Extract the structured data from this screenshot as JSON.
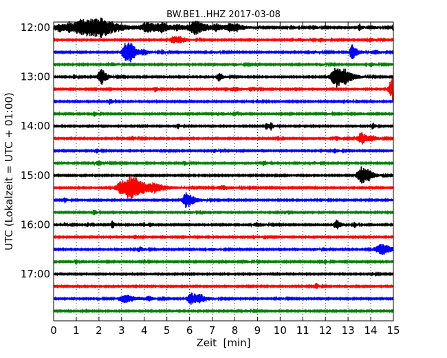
{
  "chart_data": {
    "type": "line",
    "title": "BW.BE1..HHZ 2017-03-08",
    "xlabel": "Zeit  [min]",
    "ylabel": "UTC (Lokalzeit = UTC + 01:00)",
    "xlim": [
      0,
      15
    ],
    "xticks": [
      "0",
      "1",
      "2",
      "3",
      "4",
      "5",
      "6",
      "7",
      "8",
      "9",
      "10",
      "11",
      "12",
      "13",
      "14",
      "15"
    ],
    "y_tick_labels": [
      "12:00",
      "13:00",
      "14:00",
      "15:00",
      "16:00",
      "17:00"
    ],
    "y_tick_rows": [
      0,
      4,
      8,
      12,
      16,
      20
    ],
    "grid": "vertical dotted",
    "colors": [
      "#000000",
      "#ff0000",
      "#0000ff",
      "#008000"
    ],
    "traces": [
      {
        "start": "12:00",
        "color": "#000000",
        "events": [
          [
            0.3,
            6,
            0.5
          ],
          [
            0.7,
            5,
            0.25
          ],
          [
            1.2,
            6,
            0.4
          ],
          [
            1.8,
            11,
            1.0
          ],
          [
            2.2,
            7,
            0.4
          ],
          [
            4.2,
            7,
            0.5
          ],
          [
            4.8,
            5,
            0.3
          ],
          [
            5.5,
            4,
            0.3
          ],
          [
            6.3,
            10,
            0.5
          ],
          [
            7.2,
            4,
            0.3
          ],
          [
            7.8,
            5,
            0.3
          ],
          [
            8.1,
            4,
            0.3
          ],
          [
            10.5,
            3,
            0.2
          ],
          [
            11.5,
            3,
            0.2
          ],
          [
            13.5,
            6,
            0.1
          ],
          [
            14.0,
            3,
            0.3
          ],
          [
            15.0,
            4,
            0.1
          ]
        ]
      },
      {
        "start": "12:15",
        "color": "#ff0000",
        "events": [
          [
            5.3,
            5,
            0.3
          ],
          [
            5.6,
            3,
            0.3
          ],
          [
            10.9,
            2,
            0.4
          ],
          [
            11.8,
            3,
            0.2
          ],
          [
            14.0,
            3,
            0.2
          ]
        ]
      },
      {
        "start": "12:30",
        "color": "#0000ff",
        "events": [
          [
            3.2,
            13,
            0.3
          ],
          [
            3.4,
            9,
            0.2
          ],
          [
            4.0,
            4,
            0.2
          ],
          [
            4.8,
            4,
            0.1
          ],
          [
            7.0,
            2,
            0.3
          ],
          [
            11.5,
            2,
            0.3
          ],
          [
            13.2,
            12,
            0.2
          ],
          [
            14.2,
            3,
            0.3
          ]
        ]
      },
      {
        "start": "12:45",
        "color": "#008000",
        "events": [
          [
            2.6,
            3,
            0.2
          ],
          [
            8.0,
            2,
            0.3
          ],
          [
            11.8,
            2,
            0.2
          ],
          [
            14.0,
            3,
            0.2
          ]
        ]
      },
      {
        "start": "13:00",
        "color": "#000000",
        "events": [
          [
            0.9,
            4,
            0.1
          ],
          [
            2.1,
            14,
            0.2
          ],
          [
            7.3,
            6,
            0.2
          ],
          [
            12.5,
            15,
            0.4
          ],
          [
            12.9,
            6,
            0.3
          ]
        ]
      },
      {
        "start": "13:15",
        "color": "#ff0000",
        "events": [
          [
            4.5,
            4,
            0.1
          ],
          [
            8.0,
            3,
            0.4
          ],
          [
            14.9,
            12,
            0.2
          ],
          [
            15.0,
            10,
            0.1
          ]
        ]
      },
      {
        "start": "13:30",
        "color": "#0000ff",
        "events": [
          [
            2.5,
            5,
            0.1
          ],
          [
            9.0,
            2,
            0.2
          ],
          [
            13.0,
            2,
            0.2
          ]
        ]
      },
      {
        "start": "13:45",
        "color": "#008000",
        "events": [
          [
            1.8,
            4,
            0.1
          ],
          [
            7.5,
            2,
            0.3
          ],
          [
            12.0,
            2,
            0.2
          ]
        ]
      },
      {
        "start": "14:00",
        "color": "#000000",
        "events": [
          [
            5.5,
            4,
            0.1
          ],
          [
            9.4,
            6,
            0.1
          ],
          [
            9.6,
            5,
            0.1
          ],
          [
            14.1,
            5,
            0.1
          ]
        ]
      },
      {
        "start": "14:15",
        "color": "#ff0000",
        "events": [
          [
            3.5,
            3,
            0.2
          ],
          [
            9.9,
            3,
            0.1
          ],
          [
            12.5,
            3,
            0.2
          ],
          [
            13.6,
            9,
            0.3
          ],
          [
            14.1,
            3,
            0.2
          ]
        ]
      },
      {
        "start": "14:30",
        "color": "#0000ff",
        "events": [
          [
            1.9,
            4,
            0.1
          ],
          [
            4.9,
            3,
            0.1
          ],
          [
            7.1,
            2,
            0.2
          ],
          [
            12.4,
            3,
            0.2
          ]
        ]
      },
      {
        "start": "14:45",
        "color": "#008000",
        "events": [
          [
            2.0,
            4,
            0.2
          ],
          [
            5.8,
            4,
            0.1
          ],
          [
            9.3,
            5,
            0.1
          ],
          [
            11.5,
            2,
            0.2
          ]
        ]
      },
      {
        "start": "15:00",
        "color": "#000000",
        "events": [
          [
            13.6,
            13,
            0.3
          ],
          [
            13.9,
            4,
            0.2
          ]
        ]
      },
      {
        "start": "15:15",
        "color": "#ff0000",
        "events": [
          [
            3.0,
            7,
            0.4
          ],
          [
            3.5,
            15,
            0.7
          ],
          [
            4.5,
            4,
            0.3
          ],
          [
            7.5,
            3,
            0.5
          ]
        ]
      },
      {
        "start": "15:30",
        "color": "#0000ff",
        "events": [
          [
            0.5,
            4,
            0.1
          ],
          [
            5.9,
            12,
            0.3
          ],
          [
            11.8,
            2,
            0.2
          ]
        ]
      },
      {
        "start": "15:45",
        "color": "#008000",
        "events": [
          [
            1.8,
            5,
            0.1
          ],
          [
            6.0,
            2,
            0.2
          ],
          [
            10.2,
            3,
            0.1
          ]
        ]
      },
      {
        "start": "16:00",
        "color": "#000000",
        "events": [
          [
            0.5,
            3,
            0.1
          ],
          [
            1.5,
            3,
            0.1
          ],
          [
            2.6,
            6,
            0.1
          ],
          [
            4.0,
            3,
            0.1
          ],
          [
            9.0,
            3,
            0.3
          ],
          [
            12.5,
            7,
            0.2
          ],
          [
            13.3,
            4,
            0.1
          ]
        ]
      },
      {
        "start": "16:15",
        "color": "#ff0000",
        "events": [
          [
            3.6,
            3,
            0.1
          ],
          [
            9.0,
            2,
            0.2
          ]
        ]
      },
      {
        "start": "16:30",
        "color": "#0000ff",
        "events": [
          [
            3.8,
            4,
            0.2
          ],
          [
            7.0,
            2,
            0.3
          ],
          [
            11.5,
            2,
            0.2
          ],
          [
            14.5,
            8,
            0.5
          ]
        ]
      },
      {
        "start": "16:45",
        "color": "#008000",
        "events": [
          [
            1.0,
            3,
            0.1
          ],
          [
            4.0,
            3,
            0.1
          ],
          [
            8.5,
            2,
            0.2
          ],
          [
            12.0,
            3,
            0.1
          ]
        ]
      },
      {
        "start": "17:00",
        "color": "#000000",
        "events": [
          [
            14.1,
            2,
            0.1
          ]
        ]
      },
      {
        "start": "17:15",
        "color": "#ff0000",
        "events": [
          [
            11.6,
            5,
            0.1
          ],
          [
            4.5,
            2,
            0.1
          ]
        ]
      },
      {
        "start": "17:30",
        "color": "#0000ff",
        "events": [
          [
            2.0,
            2,
            0.1
          ],
          [
            3.2,
            6,
            0.5
          ],
          [
            4.2,
            3,
            0.2
          ],
          [
            6.1,
            9,
            0.3
          ],
          [
            6.5,
            4,
            0.3
          ],
          [
            10.0,
            2,
            0.2
          ]
        ]
      },
      {
        "start": "17:45",
        "color": "#008000",
        "events": [
          [
            8.5,
            2,
            0.2
          ]
        ]
      }
    ]
  }
}
